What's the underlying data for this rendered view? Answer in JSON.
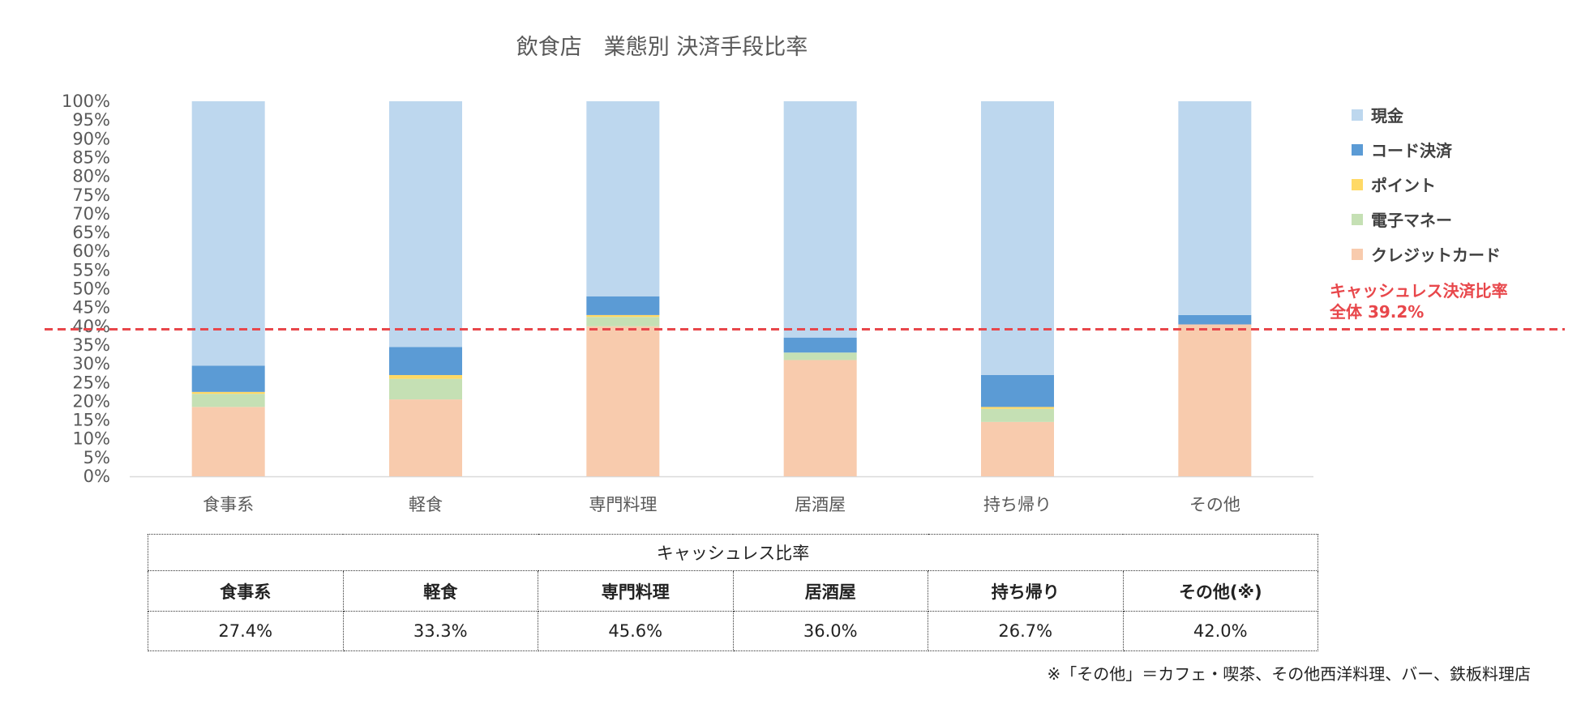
{
  "chart_data": {
    "type": "bar",
    "stacked": true,
    "title": "飲食店　業態別 決済手段比率",
    "categories": [
      "食事系",
      "軽食",
      "専門料理",
      "居酒屋",
      "持ち帰り",
      "その他"
    ],
    "series": [
      {
        "name": "クレジットカード",
        "color": "#f8cbad",
        "values": [
          18.5,
          20.5,
          40.0,
          31.0,
          14.5,
          40.5
        ]
      },
      {
        "name": "電子マネー",
        "color": "#c5e0b4",
        "values": [
          3.5,
          5.5,
          2.5,
          2.0,
          3.5,
          0.0
        ]
      },
      {
        "name": "ポイント",
        "color": "#ffd966",
        "values": [
          0.5,
          1.0,
          0.5,
          0.0,
          0.5,
          0.0
        ]
      },
      {
        "name": "コード決済",
        "color": "#5b9bd5",
        "values": [
          7.0,
          7.5,
          5.0,
          4.0,
          8.5,
          2.5
        ]
      },
      {
        "name": "現金",
        "color": "#bdd7ee",
        "values": [
          70.5,
          65.5,
          52.0,
          63.0,
          73.0,
          57.0
        ]
      }
    ],
    "ylim": [
      0,
      100
    ],
    "yticks": [
      "0%",
      "5%",
      "10%",
      "15%",
      "20%",
      "25%",
      "30%",
      "35%",
      "40%",
      "45%",
      "50%",
      "55%",
      "60%",
      "65%",
      "70%",
      "75%",
      "80%",
      "85%",
      "90%",
      "95%",
      "100%"
    ],
    "reference_line": {
      "value": 39.2,
      "color": "#e8474b",
      "label_line1": "キャッシュレス決済比率",
      "label_line2": "全体 39.2%"
    },
    "legend_position": "right",
    "grid": false
  },
  "table": {
    "header": "キャッシュレス比率",
    "columns": [
      "食事系",
      "軽食",
      "専門料理",
      "居酒屋",
      "持ち帰り",
      "その他(※)"
    ],
    "values": [
      "27.4%",
      "33.3%",
      "45.6%",
      "36.0%",
      "26.7%",
      "42.0%"
    ]
  },
  "footnote": "※「その他」＝カフェ・喫茶、その他西洋料理、バー、鉄板料理店"
}
